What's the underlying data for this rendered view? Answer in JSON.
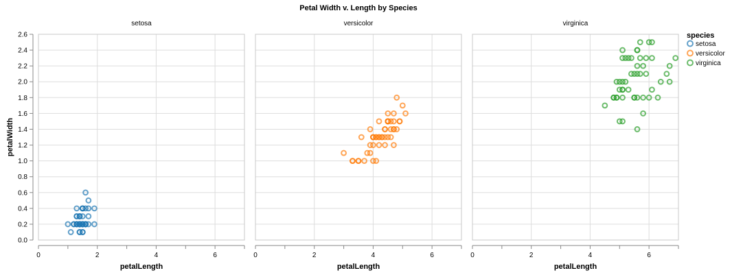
{
  "chart_data": {
    "type": "scatter",
    "title": "Petal Width v. Length by Species",
    "xlabel": "petalLength",
    "ylabel": "petalWidth",
    "xlim": [
      0,
      7
    ],
    "ylim": [
      0,
      2.6
    ],
    "x_ticks": [
      "0",
      "2",
      "4",
      "6"
    ],
    "y_ticks": [
      "0.0",
      "0.2",
      "0.4",
      "0.6",
      "0.8",
      "1.0",
      "1.2",
      "1.4",
      "1.6",
      "1.8",
      "2.0",
      "2.2",
      "2.4",
      "2.6"
    ],
    "grid": true,
    "legend": {
      "title": "species",
      "position": "right"
    },
    "colors": {
      "setosa": "#1f77b4",
      "versicolor": "#ff7f0e",
      "virginica": "#2ca02c"
    },
    "facets": [
      {
        "name": "setosa",
        "points": [
          [
            1.4,
            0.2
          ],
          [
            1.4,
            0.2
          ],
          [
            1.3,
            0.2
          ],
          [
            1.5,
            0.2
          ],
          [
            1.4,
            0.2
          ],
          [
            1.7,
            0.4
          ],
          [
            1.4,
            0.3
          ],
          [
            1.5,
            0.2
          ],
          [
            1.4,
            0.2
          ],
          [
            1.5,
            0.1
          ],
          [
            1.5,
            0.2
          ],
          [
            1.6,
            0.2
          ],
          [
            1.4,
            0.1
          ],
          [
            1.1,
            0.1
          ],
          [
            1.2,
            0.2
          ],
          [
            1.5,
            0.4
          ],
          [
            1.3,
            0.4
          ],
          [
            1.4,
            0.3
          ],
          [
            1.7,
            0.3
          ],
          [
            1.5,
            0.3
          ],
          [
            1.7,
            0.2
          ],
          [
            1.5,
            0.4
          ],
          [
            1.0,
            0.2
          ],
          [
            1.7,
            0.5
          ],
          [
            1.9,
            0.2
          ],
          [
            1.6,
            0.2
          ],
          [
            1.6,
            0.4
          ],
          [
            1.5,
            0.2
          ],
          [
            1.4,
            0.2
          ],
          [
            1.6,
            0.2
          ],
          [
            1.6,
            0.2
          ],
          [
            1.5,
            0.4
          ],
          [
            1.5,
            0.1
          ],
          [
            1.4,
            0.2
          ],
          [
            1.5,
            0.2
          ],
          [
            1.2,
            0.2
          ],
          [
            1.3,
            0.2
          ],
          [
            1.4,
            0.1
          ],
          [
            1.3,
            0.2
          ],
          [
            1.5,
            0.2
          ],
          [
            1.3,
            0.3
          ],
          [
            1.3,
            0.3
          ],
          [
            1.3,
            0.2
          ],
          [
            1.6,
            0.6
          ],
          [
            1.9,
            0.4
          ],
          [
            1.4,
            0.3
          ],
          [
            1.6,
            0.2
          ],
          [
            1.4,
            0.2
          ],
          [
            1.5,
            0.2
          ],
          [
            1.4,
            0.2
          ]
        ]
      },
      {
        "name": "versicolor",
        "points": [
          [
            4.7,
            1.4
          ],
          [
            4.5,
            1.5
          ],
          [
            4.9,
            1.5
          ],
          [
            4.0,
            1.3
          ],
          [
            4.6,
            1.5
          ],
          [
            4.5,
            1.3
          ],
          [
            4.7,
            1.6
          ],
          [
            3.3,
            1.0
          ],
          [
            4.6,
            1.3
          ],
          [
            3.9,
            1.4
          ],
          [
            3.5,
            1.0
          ],
          [
            4.2,
            1.5
          ],
          [
            4.0,
            1.0
          ],
          [
            4.7,
            1.4
          ],
          [
            3.6,
            1.3
          ],
          [
            4.4,
            1.4
          ],
          [
            4.5,
            1.5
          ],
          [
            4.1,
            1.0
          ],
          [
            4.5,
            1.5
          ],
          [
            3.9,
            1.1
          ],
          [
            4.8,
            1.8
          ],
          [
            4.0,
            1.3
          ],
          [
            4.9,
            1.5
          ],
          [
            4.7,
            1.2
          ],
          [
            4.3,
            1.3
          ],
          [
            4.4,
            1.4
          ],
          [
            4.8,
            1.4
          ],
          [
            5.0,
            1.7
          ],
          [
            4.5,
            1.5
          ],
          [
            3.5,
            1.0
          ],
          [
            3.8,
            1.1
          ],
          [
            3.7,
            1.0
          ],
          [
            3.9,
            1.2
          ],
          [
            5.1,
            1.6
          ],
          [
            4.5,
            1.5
          ],
          [
            4.5,
            1.6
          ],
          [
            4.7,
            1.5
          ],
          [
            4.4,
            1.3
          ],
          [
            4.1,
            1.3
          ],
          [
            4.0,
            1.3
          ],
          [
            4.4,
            1.2
          ],
          [
            4.6,
            1.4
          ],
          [
            4.0,
            1.2
          ],
          [
            3.3,
            1.0
          ],
          [
            4.2,
            1.3
          ],
          [
            4.2,
            1.2
          ],
          [
            4.2,
            1.3
          ],
          [
            4.3,
            1.3
          ],
          [
            3.0,
            1.1
          ],
          [
            4.1,
            1.3
          ]
        ]
      },
      {
        "name": "virginica",
        "points": [
          [
            6.0,
            2.5
          ],
          [
            5.1,
            1.9
          ],
          [
            5.9,
            2.1
          ],
          [
            5.6,
            1.8
          ],
          [
            5.8,
            2.2
          ],
          [
            6.6,
            2.1
          ],
          [
            4.5,
            1.7
          ],
          [
            6.3,
            1.8
          ],
          [
            5.8,
            1.8
          ],
          [
            6.1,
            2.5
          ],
          [
            5.1,
            2.0
          ],
          [
            5.3,
            1.9
          ],
          [
            5.5,
            2.1
          ],
          [
            5.0,
            2.0
          ],
          [
            5.1,
            2.4
          ],
          [
            5.3,
            2.3
          ],
          [
            5.5,
            1.8
          ],
          [
            6.7,
            2.2
          ],
          [
            6.9,
            2.3
          ],
          [
            5.0,
            1.5
          ],
          [
            5.7,
            2.3
          ],
          [
            4.9,
            2.0
          ],
          [
            6.7,
            2.0
          ],
          [
            4.9,
            1.8
          ],
          [
            5.7,
            2.1
          ],
          [
            6.0,
            1.8
          ],
          [
            4.8,
            1.8
          ],
          [
            4.9,
            1.8
          ],
          [
            5.6,
            2.1
          ],
          [
            5.8,
            1.6
          ],
          [
            6.1,
            1.9
          ],
          [
            6.4,
            2.0
          ],
          [
            5.6,
            2.2
          ],
          [
            5.1,
            1.5
          ],
          [
            5.6,
            1.4
          ],
          [
            6.1,
            2.3
          ],
          [
            5.6,
            2.4
          ],
          [
            5.5,
            1.8
          ],
          [
            4.8,
            1.8
          ],
          [
            5.4,
            2.1
          ],
          [
            5.6,
            2.4
          ],
          [
            5.1,
            2.3
          ],
          [
            5.1,
            1.9
          ],
          [
            5.9,
            2.3
          ],
          [
            5.7,
            2.5
          ],
          [
            5.2,
            2.3
          ],
          [
            5.0,
            1.9
          ],
          [
            5.2,
            2.0
          ],
          [
            5.4,
            2.3
          ],
          [
            5.1,
            1.8
          ]
        ]
      }
    ]
  }
}
